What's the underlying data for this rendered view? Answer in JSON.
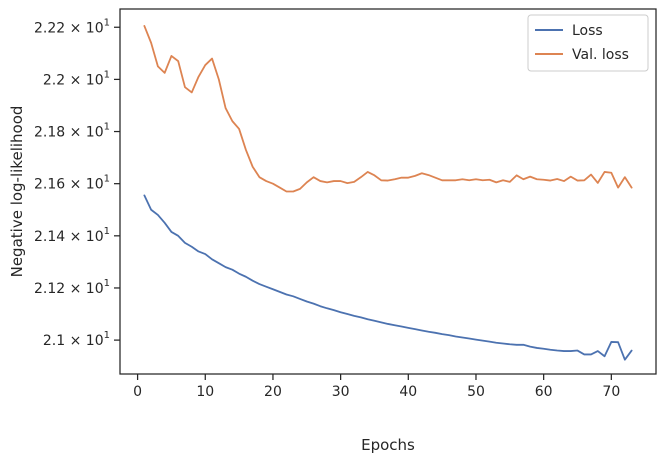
{
  "chart_data": {
    "type": "line",
    "xlabel": "Epochs",
    "ylabel": "Negative log-likelihood",
    "xlim": [
      -2.6,
      76.6
    ],
    "ylim": [
      20.87,
      22.27
    ],
    "xticks": [
      0,
      10,
      20,
      30,
      40,
      50,
      60,
      70
    ],
    "xtick_labels": [
      "0",
      "10",
      "20",
      "30",
      "40",
      "50",
      "60",
      "70"
    ],
    "yticks": [
      21.0,
      21.2,
      21.4,
      21.6,
      21.8,
      22.0,
      22.2
    ],
    "ytick_mantissas": [
      "2.1",
      "2.12",
      "2.14",
      "2.16",
      "2.18",
      "2.2",
      "2.22"
    ],
    "ytick_times": "×",
    "ytick_base": "10",
    "ytick_exponent": "1",
    "grid": false,
    "legend_position": "top-right",
    "series": [
      {
        "name": "Loss",
        "color": "#4c72b0",
        "x": [
          1,
          2,
          3,
          4,
          5,
          6,
          7,
          8,
          9,
          10,
          11,
          12,
          13,
          14,
          15,
          16,
          17,
          18,
          19,
          20,
          21,
          22,
          23,
          24,
          25,
          26,
          27,
          28,
          29,
          30,
          31,
          32,
          33,
          34,
          35,
          36,
          37,
          38,
          39,
          40,
          41,
          42,
          43,
          44,
          45,
          46,
          47,
          48,
          49,
          50,
          51,
          52,
          53,
          54,
          55,
          56,
          57,
          58,
          59,
          60,
          61,
          62,
          63,
          64,
          65,
          66,
          67,
          68,
          69,
          70,
          71,
          72,
          73
        ],
        "y": [
          21.555,
          21.5,
          21.48,
          21.45,
          21.415,
          21.4,
          21.373,
          21.358,
          21.34,
          21.33,
          21.31,
          21.295,
          21.28,
          21.27,
          21.255,
          21.243,
          21.228,
          21.215,
          21.205,
          21.195,
          21.185,
          21.175,
          21.168,
          21.158,
          21.148,
          21.14,
          21.13,
          21.122,
          21.115,
          21.107,
          21.1,
          21.093,
          21.087,
          21.08,
          21.074,
          21.068,
          21.062,
          21.057,
          21.052,
          21.047,
          21.042,
          21.037,
          21.032,
          21.028,
          21.023,
          21.019,
          21.014,
          21.01,
          21.006,
          21.002,
          20.998,
          20.994,
          20.99,
          20.987,
          20.984,
          20.982,
          20.982,
          20.975,
          20.97,
          20.967,
          20.963,
          20.96,
          20.958,
          20.958,
          20.96,
          20.945,
          20.945,
          20.958,
          20.938,
          20.993,
          20.992,
          20.925,
          20.96
        ]
      },
      {
        "name": "Val. loss",
        "color": "#dd8452",
        "x": [
          1,
          2,
          3,
          4,
          5,
          6,
          7,
          8,
          9,
          10,
          11,
          12,
          13,
          14,
          15,
          16,
          17,
          18,
          19,
          20,
          21,
          22,
          23,
          24,
          25,
          26,
          27,
          28,
          29,
          30,
          31,
          32,
          33,
          34,
          35,
          36,
          37,
          38,
          39,
          40,
          41,
          42,
          43,
          44,
          45,
          46,
          47,
          48,
          49,
          50,
          51,
          52,
          53,
          54,
          55,
          56,
          57,
          58,
          59,
          60,
          61,
          62,
          63,
          64,
          65,
          66,
          67,
          68,
          69,
          70,
          71,
          72,
          73
        ],
        "y": [
          22.205,
          22.14,
          22.05,
          22.025,
          22.09,
          22.07,
          21.97,
          21.95,
          22.01,
          22.055,
          22.08,
          22.0,
          21.89,
          21.84,
          21.81,
          21.73,
          21.665,
          21.625,
          21.61,
          21.6,
          21.585,
          21.57,
          21.57,
          21.58,
          21.605,
          21.625,
          21.61,
          21.605,
          21.61,
          21.61,
          21.602,
          21.607,
          21.625,
          21.645,
          21.632,
          21.613,
          21.612,
          21.617,
          21.623,
          21.623,
          21.63,
          21.64,
          21.633,
          21.623,
          21.613,
          21.613,
          21.613,
          21.617,
          21.613,
          21.617,
          21.613,
          21.615,
          21.605,
          21.613,
          21.607,
          21.632,
          21.617,
          21.627,
          21.617,
          21.615,
          21.612,
          21.618,
          21.61,
          21.627,
          21.612,
          21.613,
          21.635,
          21.603,
          21.645,
          21.642,
          21.585,
          21.625,
          21.585
        ]
      }
    ]
  }
}
